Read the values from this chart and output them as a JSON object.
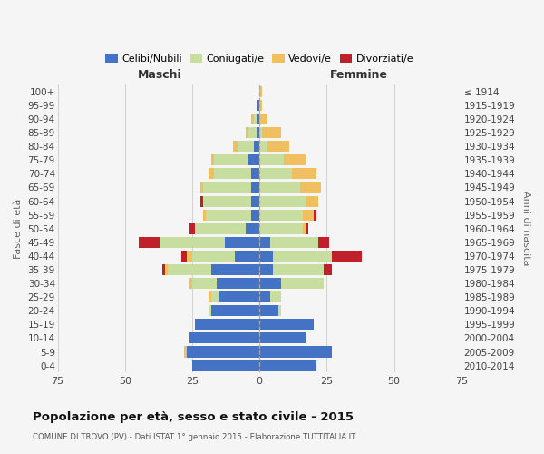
{
  "age_groups": [
    "0-4",
    "5-9",
    "10-14",
    "15-19",
    "20-24",
    "25-29",
    "30-34",
    "35-39",
    "40-44",
    "45-49",
    "50-54",
    "55-59",
    "60-64",
    "65-69",
    "70-74",
    "75-79",
    "80-84",
    "85-89",
    "90-94",
    "95-99",
    "100+"
  ],
  "birth_years": [
    "2010-2014",
    "2005-2009",
    "2000-2004",
    "1995-1999",
    "1990-1994",
    "1985-1989",
    "1980-1984",
    "1975-1979",
    "1970-1974",
    "1965-1969",
    "1960-1964",
    "1955-1959",
    "1950-1954",
    "1945-1949",
    "1940-1944",
    "1935-1939",
    "1930-1934",
    "1925-1929",
    "1920-1924",
    "1915-1919",
    "≤ 1914"
  ],
  "male_celibi": [
    25,
    27,
    26,
    24,
    18,
    15,
    16,
    18,
    9,
    13,
    5,
    3,
    3,
    3,
    3,
    4,
    2,
    1,
    1,
    1,
    0
  ],
  "male_coniugati": [
    0,
    0,
    0,
    0,
    1,
    3,
    9,
    16,
    16,
    24,
    19,
    17,
    18,
    18,
    14,
    13,
    6,
    3,
    1,
    0,
    0
  ],
  "male_vedovi": [
    0,
    1,
    0,
    0,
    0,
    1,
    1,
    1,
    2,
    0,
    0,
    1,
    0,
    1,
    2,
    1,
    2,
    1,
    1,
    0,
    0
  ],
  "male_divorziati": [
    0,
    0,
    0,
    0,
    0,
    0,
    0,
    1,
    2,
    8,
    2,
    0,
    1,
    0,
    0,
    0,
    0,
    0,
    0,
    0,
    0
  ],
  "female_celibi": [
    21,
    27,
    17,
    20,
    7,
    4,
    8,
    5,
    5,
    4,
    0,
    0,
    0,
    0,
    0,
    0,
    0,
    0,
    0,
    0,
    0
  ],
  "female_coniugati": [
    0,
    0,
    0,
    0,
    1,
    4,
    16,
    19,
    22,
    18,
    16,
    16,
    17,
    15,
    12,
    9,
    3,
    1,
    0,
    0,
    0
  ],
  "female_vedovi": [
    0,
    0,
    0,
    0,
    0,
    0,
    0,
    0,
    0,
    0,
    1,
    4,
    5,
    8,
    9,
    8,
    8,
    7,
    3,
    1,
    1
  ],
  "female_divorziati": [
    0,
    0,
    0,
    0,
    0,
    0,
    0,
    3,
    11,
    4,
    1,
    1,
    0,
    0,
    0,
    0,
    0,
    0,
    0,
    0,
    0
  ],
  "color_celibi": "#4472c4",
  "color_coniugati": "#c8dda0",
  "color_vedovi": "#f0c060",
  "color_divorziati": "#c0202a",
  "xlim": 75,
  "title": "Popolazione per età, sesso e stato civile - 2015",
  "subtitle": "COMUNE DI TROVO (PV) - Dati ISTAT 1° gennaio 2015 - Elaborazione TUTTITALIA.IT",
  "ylabel_left": "Fasce di età",
  "ylabel_right": "Anni di nascita",
  "xlabel_left": "Maschi",
  "xlabel_right": "Femmine",
  "bg_color": "#f5f5f5",
  "grid_color": "#cccccc"
}
